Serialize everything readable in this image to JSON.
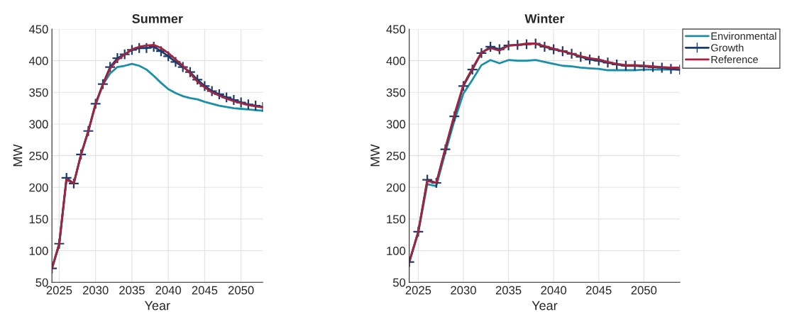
{
  "chart_data": [
    {
      "type": "line",
      "title": "Summer",
      "xlabel": "Year",
      "ylabel": "MW",
      "x": [
        2024,
        2025,
        2026,
        2027,
        2028,
        2029,
        2030,
        2031,
        2032,
        2033,
        2034,
        2035,
        2036,
        2037,
        2038,
        2039,
        2040,
        2041,
        2042,
        2043,
        2044,
        2045,
        2046,
        2047,
        2048,
        2049,
        2050,
        2051,
        2052,
        2053
      ],
      "series": [
        {
          "color": "#1a8fa8",
          "marker": "none",
          "values": [
            72,
            108,
            212,
            206,
            252,
            288,
            330,
            362,
            380,
            390,
            392,
            395,
            392,
            386,
            376,
            365,
            355,
            349,
            344,
            341,
            339,
            335,
            332,
            329,
            327,
            325,
            324,
            323,
            322,
            321
          ]
        },
        {
          "color": "#1f3b6b",
          "marker": "cross",
          "values": [
            72,
            111,
            215,
            206,
            252,
            289,
            332,
            363,
            390,
            404,
            410,
            417,
            420,
            420,
            422,
            415,
            407,
            398,
            390,
            382,
            370,
            360,
            352,
            347,
            342,
            338,
            334,
            331,
            329,
            327
          ]
        },
        {
          "color": "#a3243f",
          "marker": "none",
          "values": [
            72,
            111,
            213,
            206,
            252,
            289,
            332,
            362,
            388,
            401,
            410,
            418,
            422,
            424,
            425,
            420,
            412,
            402,
            392,
            380,
            367,
            358,
            350,
            345,
            340,
            336,
            333,
            330,
            328,
            326
          ]
        }
      ],
      "xlim": [
        2024,
        2053
      ],
      "xticks": [
        2025,
        2030,
        2035,
        2040,
        2045,
        2050
      ],
      "ylim": [
        50,
        450
      ],
      "yticks": [
        50,
        100,
        150,
        200,
        250,
        300,
        350,
        400,
        450
      ],
      "grid": true,
      "legend": false
    },
    {
      "type": "line",
      "title": "Winter",
      "xlabel": "Year",
      "ylabel": "MW",
      "x": [
        2024,
        2025,
        2026,
        2027,
        2028,
        2029,
        2030,
        2031,
        2032,
        2033,
        2034,
        2035,
        2036,
        2037,
        2038,
        2039,
        2040,
        2041,
        2042,
        2043,
        2044,
        2045,
        2046,
        2047,
        2048,
        2049,
        2050,
        2051,
        2052,
        2053,
        2054
      ],
      "series": [
        {
          "name": "Environmental",
          "color": "#1a8fa8",
          "marker": "none",
          "values": [
            82,
            128,
            205,
            202,
            255,
            305,
            348,
            370,
            393,
            401,
            396,
            401,
            400,
            400,
            401,
            398,
            395,
            392,
            391,
            389,
            388,
            387,
            385,
            385,
            385,
            385,
            386,
            386,
            386,
            386,
            386
          ]
        },
        {
          "name": "Growth",
          "color": "#1f3b6b",
          "marker": "cross",
          "values": [
            82,
            130,
            212,
            207,
            260,
            312,
            360,
            386,
            412,
            422,
            418,
            424,
            425,
            426,
            427,
            422,
            418,
            415,
            411,
            406,
            402,
            400,
            397,
            394,
            392,
            392,
            391,
            390,
            389,
            387,
            386
          ]
        },
        {
          "name": "Reference",
          "color": "#a3243f",
          "marker": "none",
          "values": [
            82,
            130,
            210,
            207,
            262,
            315,
            362,
            388,
            413,
            420,
            416,
            424,
            425,
            427,
            427,
            423,
            419,
            415,
            411,
            407,
            404,
            402,
            398,
            395,
            393,
            393,
            392,
            391,
            390,
            389,
            389
          ]
        }
      ],
      "xlim": [
        2024,
        2054
      ],
      "xticks": [
        2025,
        2030,
        2035,
        2040,
        2045,
        2050
      ],
      "ylim": [
        50,
        450
      ],
      "yticks": [
        50,
        100,
        150,
        200,
        250,
        300,
        350,
        400,
        450
      ],
      "grid": true,
      "legend": "right"
    }
  ]
}
